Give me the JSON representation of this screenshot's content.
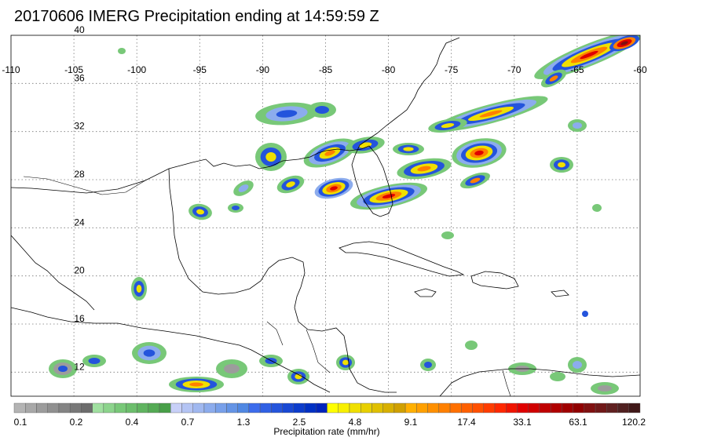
{
  "title": "20170606 IMERG Precipitation ending at 14:59:59 Z",
  "map": {
    "lon_range": [
      -110,
      -60
    ],
    "lat_range": [
      10,
      40
    ],
    "lon_ticks": [
      "-110",
      "-105",
      "-100",
      "-95",
      "-90",
      "-85",
      "-80",
      "-75",
      "-70",
      "-65",
      "-60"
    ],
    "lat_ticks": [
      "40",
      "36",
      "32",
      "28",
      "24",
      "20",
      "16",
      "12"
    ],
    "grid": "dotted",
    "features": [
      "coastlines",
      "country-borders",
      "precipitation-field"
    ]
  },
  "colorbar": {
    "title": "Precipitation rate (mm/hr)",
    "labels": [
      "0.1",
      "0.2",
      "0.4",
      "0.7",
      "1.3",
      "2.5",
      "4.8",
      "9.1",
      "17.4",
      "33.1",
      "63.1",
      "120.2"
    ],
    "colors": [
      "#b4b4b4",
      "#a8a8a8",
      "#9c9c9c",
      "#909090",
      "#848484",
      "#787878",
      "#6c6c6c",
      "#a0e0a0",
      "#8cd48c",
      "#78c878",
      "#6cbe6c",
      "#60b460",
      "#54aa54",
      "#489f48",
      "#c8d0f8",
      "#b4c4f4",
      "#a0b8f0",
      "#8caced",
      "#78a0ea",
      "#6494e6",
      "#5088e3",
      "#3c6cec",
      "#3060e4",
      "#2454dc",
      "#1848d4",
      "#0c3ccc",
      "#0030c4",
      "#0024bc",
      "#ffff00",
      "#f8f000",
      "#f0e000",
      "#e8d000",
      "#e0c000",
      "#d8b000",
      "#d0a000",
      "#ffb000",
      "#ffa000",
      "#ff9000",
      "#ff8000",
      "#ff7000",
      "#ff6000",
      "#ff5000",
      "#ff3c00",
      "#ff2800",
      "#f01400",
      "#e00000",
      "#d00000",
      "#c00000",
      "#b00000",
      "#a00000",
      "#900000",
      "#801010",
      "#701818",
      "#602020",
      "#502020",
      "#401818"
    ]
  }
}
